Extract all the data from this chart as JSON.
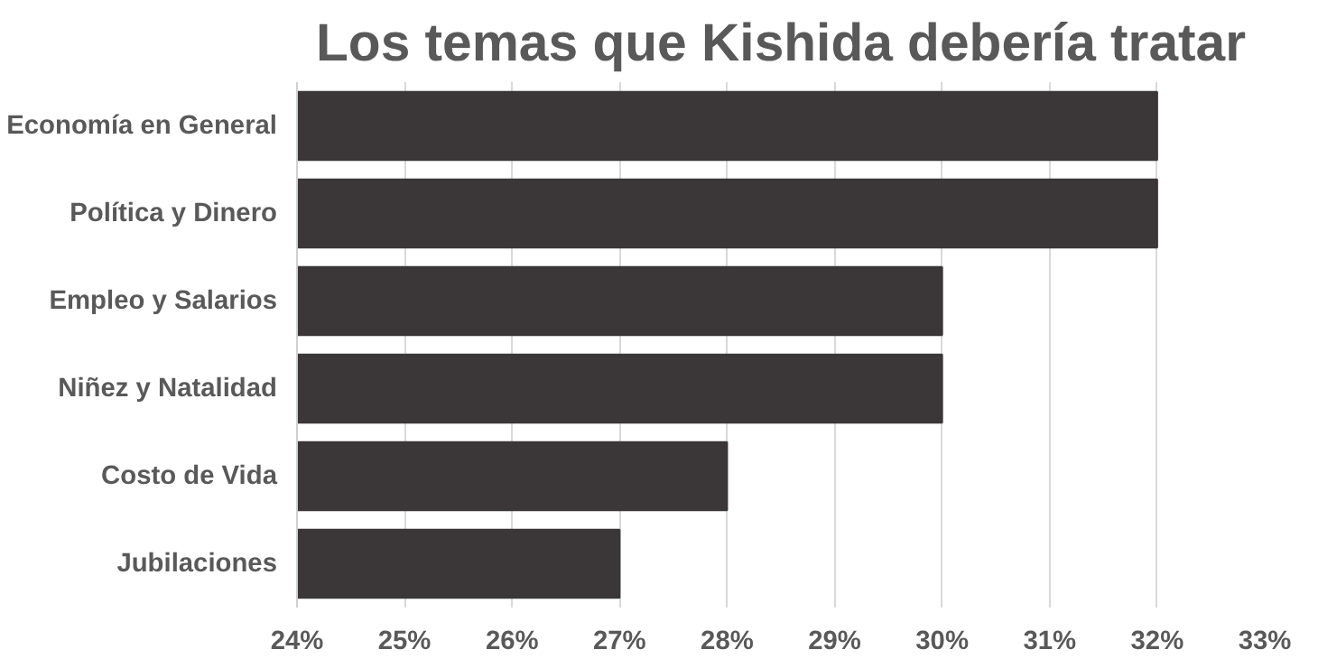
{
  "chart_data": {
    "type": "bar",
    "orientation": "horizontal",
    "title": "Los temas que Kishida debería tratar",
    "categories": [
      "Economía en General",
      "Política y Dinero",
      "Empleo y Salarios",
      "Niñez y Natalidad",
      "Costo de Vida",
      "Jubilaciones"
    ],
    "values": [
      32,
      32,
      30,
      30,
      28,
      27
    ],
    "color": "#3b3637",
    "xlim": [
      24,
      33
    ],
    "xticks": [
      {
        "value": 24,
        "label": "24%"
      },
      {
        "value": 25,
        "label": "25%"
      },
      {
        "value": 26,
        "label": "26%"
      },
      {
        "value": 27,
        "label": "27%"
      },
      {
        "value": 28,
        "label": "28%"
      },
      {
        "value": 29,
        "label": "29%"
      },
      {
        "value": 30,
        "label": "30%"
      },
      {
        "value": 31,
        "label": "31%"
      },
      {
        "value": 32,
        "label": "32%"
      },
      {
        "value": 33,
        "label": "33%"
      }
    ],
    "grid": "x"
  }
}
